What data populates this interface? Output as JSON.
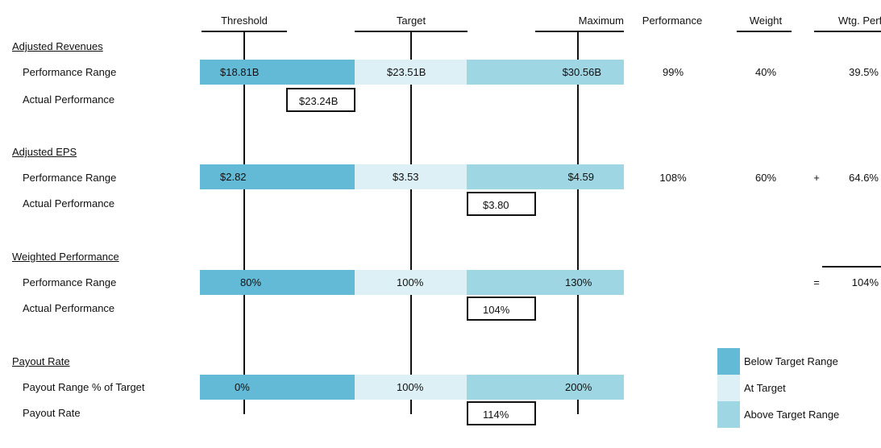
{
  "headers": {
    "threshold": "Threshold",
    "target": "Target",
    "maximum": "Maximum",
    "performance": "Performance",
    "weight": "Weight",
    "wtg_perf": "Wtg. Perf."
  },
  "sections": [
    {
      "title": "Adjusted Revenues",
      "range_label": "Performance Range",
      "actual_label": "Actual Performance",
      "threshold": "$18.81B",
      "target": "$23.51B",
      "maximum": "$30.56B",
      "actual": "$23.24B",
      "performance": "99%",
      "weight": "40%",
      "wtg_perf": "39.5%"
    },
    {
      "title": "Adjusted EPS",
      "range_label": "Performance Range",
      "actual_label": "Actual Performance",
      "threshold": "$2.82",
      "target": "$3.53",
      "maximum": "$4.59",
      "actual": "$3.80",
      "performance": "108%",
      "weight": "60%",
      "operator": "+",
      "wtg_perf": "64.6%"
    },
    {
      "title": "Weighted Performance",
      "range_label": "Performance Range",
      "actual_label": "Actual Performance",
      "threshold": "80%",
      "target": "100%",
      "maximum": "130%",
      "actual": "104%",
      "operator": "=",
      "wtg_perf": "104%"
    },
    {
      "title": "Payout Rate",
      "range_label": "Payout Range % of Target",
      "actual_label": "Payout Rate",
      "threshold": "0%",
      "target": "100%",
      "maximum": "200%",
      "actual": "114%"
    }
  ],
  "legend": {
    "below": "Below Target Range",
    "at": "At Target",
    "above": "Above Target Range"
  },
  "colors": {
    "below": "#63BAD6",
    "at": "#DCF0F6",
    "above": "#9ED6E3"
  }
}
